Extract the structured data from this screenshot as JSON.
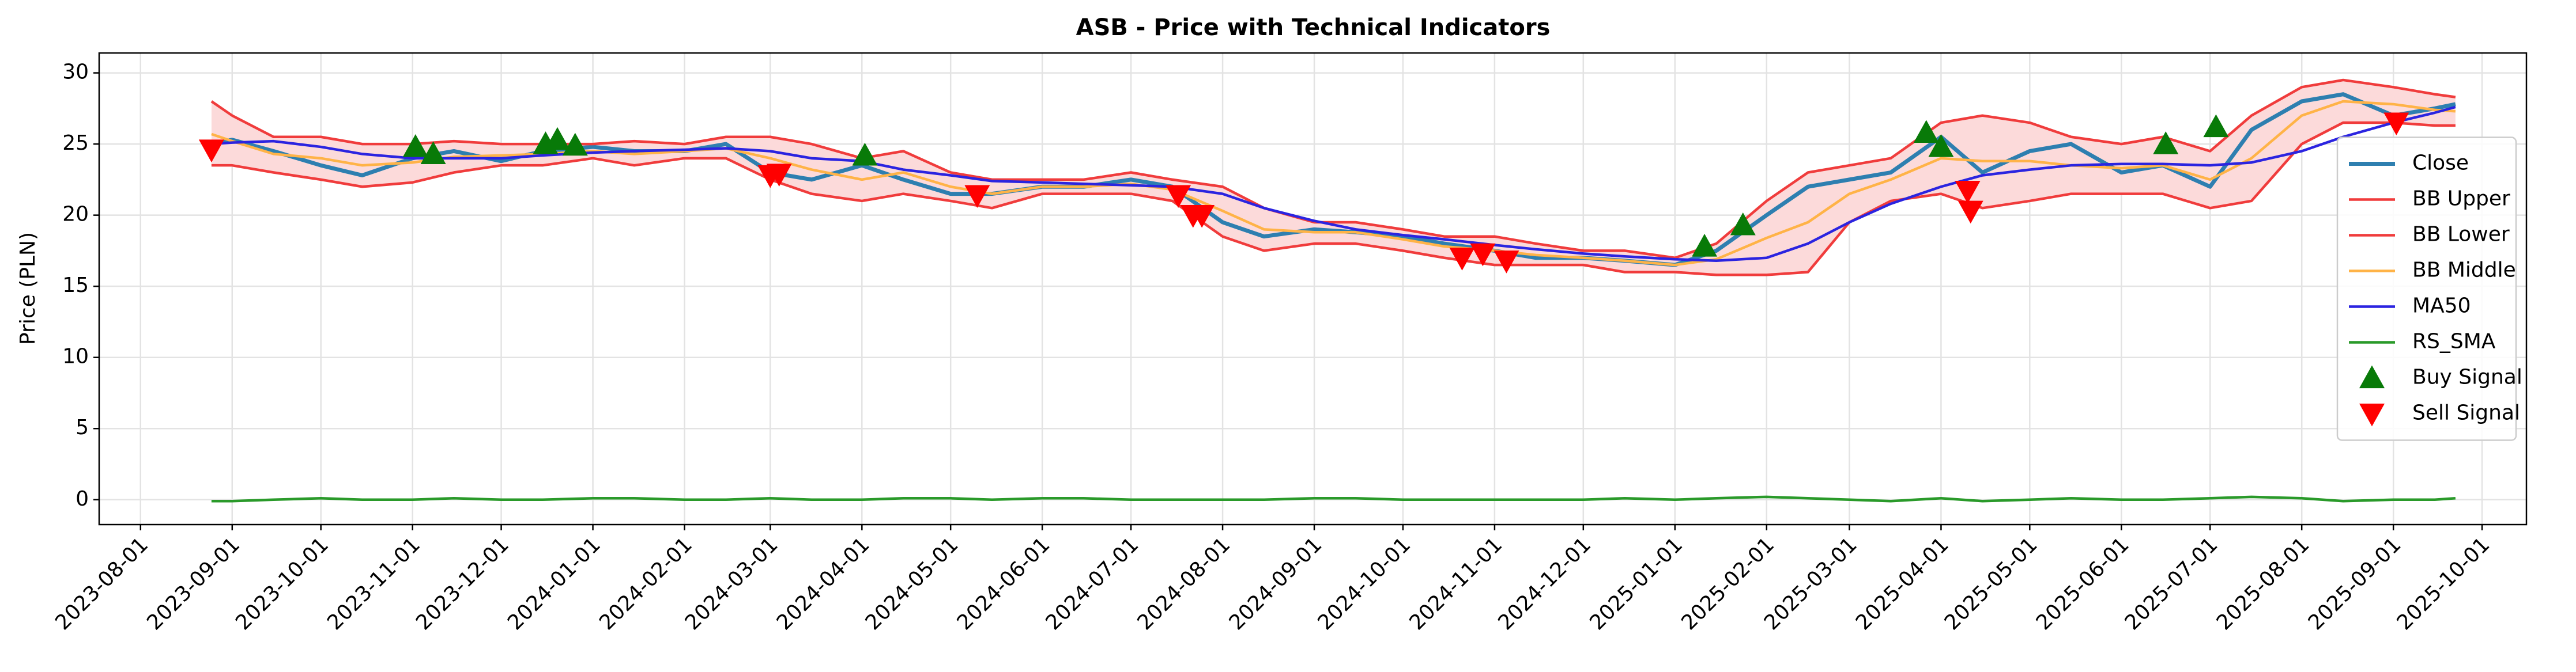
{
  "chart_data": {
    "type": "line",
    "title": "ASB - Price with Technical Indicators",
    "ylabel": "Price (PLN)",
    "x": [
      "2023-08-25",
      "2023-09-01",
      "2023-09-15",
      "2023-10-01",
      "2023-10-15",
      "2023-11-01",
      "2023-11-15",
      "2023-12-01",
      "2023-12-15",
      "2024-01-01",
      "2024-01-15",
      "2024-02-01",
      "2024-02-15",
      "2024-03-01",
      "2024-03-15",
      "2024-04-01",
      "2024-04-15",
      "2024-05-01",
      "2024-05-15",
      "2024-06-01",
      "2024-06-15",
      "2024-07-01",
      "2024-07-15",
      "2024-08-01",
      "2024-08-15",
      "2024-09-01",
      "2024-09-15",
      "2024-10-01",
      "2024-10-15",
      "2024-11-01",
      "2024-11-15",
      "2024-12-01",
      "2024-12-15",
      "2025-01-01",
      "2025-01-15",
      "2025-02-01",
      "2025-02-15",
      "2025-03-01",
      "2025-03-15",
      "2025-04-01",
      "2025-04-15",
      "2025-05-01",
      "2025-05-15",
      "2025-06-01",
      "2025-06-15",
      "2025-07-01",
      "2025-07-15",
      "2025-08-01",
      "2025-08-15",
      "2025-09-01",
      "2025-09-15",
      "2025-09-22"
    ],
    "series": [
      {
        "name": "Close",
        "color": "#2e7fb0",
        "width": 7,
        "values": [
          25.0,
          25.3,
          24.5,
          23.5,
          22.8,
          24.0,
          24.5,
          23.8,
          24.5,
          24.8,
          24.5,
          24.5,
          25.0,
          23.0,
          22.5,
          23.5,
          22.5,
          21.5,
          21.5,
          22.0,
          22.0,
          22.5,
          22.0,
          19.5,
          18.5,
          19.0,
          18.8,
          18.5,
          18.0,
          17.5,
          17.0,
          17.0,
          16.8,
          16.5,
          17.5,
          20.0,
          22.0,
          22.5,
          23.0,
          25.5,
          23.0,
          24.5,
          25.0,
          23.0,
          23.5,
          22.0,
          26.0,
          28.0,
          28.5,
          27.0,
          27.5,
          27.8
        ]
      },
      {
        "name": "BB Upper",
        "color": "#f03c3c",
        "width": 4.5,
        "values": [
          28.0,
          27.0,
          25.5,
          25.5,
          25.0,
          25.0,
          25.2,
          25.0,
          25.0,
          25.0,
          25.2,
          25.0,
          25.5,
          25.5,
          25.0,
          24.0,
          24.5,
          23.0,
          22.5,
          22.5,
          22.5,
          23.0,
          22.5,
          22.0,
          20.5,
          19.5,
          19.5,
          19.0,
          18.5,
          18.5,
          18.0,
          17.5,
          17.5,
          17.0,
          18.0,
          21.0,
          23.0,
          23.5,
          24.0,
          26.5,
          27.0,
          26.5,
          25.5,
          25.0,
          25.5,
          24.5,
          27.0,
          29.0,
          29.5,
          29.0,
          28.5,
          28.3
        ]
      },
      {
        "name": "BB Lower",
        "color": "#f03c3c",
        "width": 4.5,
        "values": [
          23.5,
          23.5,
          23.0,
          22.5,
          22.0,
          22.3,
          23.0,
          23.5,
          23.5,
          24.0,
          23.5,
          24.0,
          24.0,
          22.5,
          21.5,
          21.0,
          21.5,
          21.0,
          20.5,
          21.5,
          21.5,
          21.5,
          21.0,
          18.5,
          17.5,
          18.0,
          18.0,
          17.5,
          17.0,
          16.5,
          16.5,
          16.5,
          16.0,
          16.0,
          15.8,
          15.8,
          16.0,
          19.5,
          21.0,
          21.5,
          20.5,
          21.0,
          21.5,
          21.5,
          21.5,
          20.5,
          21.0,
          25.0,
          26.5,
          26.5,
          26.3,
          26.3
        ]
      },
      {
        "name": "BB Middle",
        "color": "#ffb347",
        "width": 4.5,
        "values": [
          25.7,
          25.2,
          24.3,
          24.0,
          23.5,
          23.7,
          24.1,
          24.2,
          24.3,
          24.5,
          24.3,
          24.5,
          24.7,
          24.0,
          23.2,
          22.5,
          23.0,
          22.0,
          21.5,
          22.0,
          22.0,
          22.2,
          21.8,
          20.3,
          19.0,
          18.8,
          18.8,
          18.3,
          17.8,
          17.5,
          17.2,
          17.0,
          16.8,
          16.5,
          16.9,
          18.4,
          19.5,
          21.5,
          22.5,
          24.0,
          23.8,
          23.8,
          23.5,
          23.3,
          23.5,
          22.5,
          24.0,
          27.0,
          28.0,
          27.8,
          27.4,
          27.3
        ]
      },
      {
        "name": "MA50",
        "color": "#2b24e0",
        "width": 4.5,
        "values": [
          25.0,
          25.1,
          25.2,
          24.8,
          24.3,
          24.0,
          24.0,
          24.0,
          24.2,
          24.4,
          24.5,
          24.6,
          24.7,
          24.5,
          24.0,
          23.8,
          23.2,
          22.8,
          22.4,
          22.3,
          22.2,
          22.1,
          22.0,
          21.5,
          20.5,
          19.6,
          19.0,
          18.6,
          18.3,
          17.9,
          17.6,
          17.3,
          17.1,
          16.9,
          16.8,
          17.0,
          18.0,
          19.5,
          20.8,
          22.0,
          22.8,
          23.2,
          23.5,
          23.6,
          23.6,
          23.5,
          23.7,
          24.5,
          25.5,
          26.5,
          27.2,
          27.6
        ]
      },
      {
        "name": "RS_SMA",
        "color": "#2a9a2a",
        "width": 4.5,
        "values": [
          -0.1,
          -0.1,
          0,
          0.1,
          0,
          0,
          0.1,
          0,
          0,
          0.1,
          0.1,
          0,
          0,
          0.1,
          0,
          0,
          0.1,
          0.1,
          0,
          0.1,
          0.1,
          0,
          0,
          0,
          0,
          0.1,
          0.1,
          0,
          0,
          0,
          0,
          0,
          0.1,
          0,
          0.1,
          0.2,
          0.1,
          0,
          -0.1,
          0.1,
          -0.1,
          0,
          0.1,
          0,
          0,
          0.1,
          0.2,
          0.1,
          -0.1,
          0,
          0,
          0.1
        ]
      }
    ],
    "fill_between": [
      1,
      2
    ],
    "fill_color": "#fcdada",
    "markers": [
      {
        "name": "Buy Signal",
        "color": "#087a08",
        "marker": "triangle-up",
        "x": [
          "2023-11-02",
          "2023-11-08",
          "2023-12-16",
          "2023-12-20",
          "2023-12-26",
          "2024-04-02",
          "2025-01-11",
          "2025-01-24",
          "2025-03-27",
          "2025-04-01",
          "2025-06-16",
          "2025-07-03"
        ],
        "values": [
          24.8,
          24.3,
          25.0,
          25.3,
          24.9,
          24.2,
          17.8,
          19.3,
          25.8,
          24.8,
          25.0,
          26.2
        ]
      },
      {
        "name": "Sell Signal",
        "color": "#ff0000",
        "marker": "triangle-down",
        "x": [
          "2023-08-25",
          "2024-03-01",
          "2024-03-04",
          "2024-05-10",
          "2024-07-17",
          "2024-07-22",
          "2024-07-25",
          "2024-10-21",
          "2024-10-28",
          "2024-11-05",
          "2025-04-10",
          "2025-04-11",
          "2025-09-02"
        ],
        "values": [
          24.6,
          22.8,
          22.9,
          21.4,
          21.4,
          20.0,
          20.0,
          17.0,
          17.3,
          16.8,
          21.7,
          20.3,
          26.5
        ]
      }
    ],
    "xlim": [
      "2023-07-18",
      "2025-10-16"
    ],
    "xticks": [
      "2023-08-01",
      "2023-09-01",
      "2023-10-01",
      "2023-11-01",
      "2023-12-01",
      "2024-01-01",
      "2024-02-01",
      "2024-03-01",
      "2024-04-01",
      "2024-05-01",
      "2024-06-01",
      "2024-07-01",
      "2024-08-01",
      "2024-09-01",
      "2024-10-01",
      "2024-11-01",
      "2024-12-01",
      "2025-01-01",
      "2025-02-01",
      "2025-03-01",
      "2025-04-01",
      "2025-05-01",
      "2025-06-01",
      "2025-07-01",
      "2025-08-01",
      "2025-09-01",
      "2025-10-01"
    ],
    "ylim": [
      -1.75,
      31.4
    ],
    "yticks": [
      0,
      5,
      10,
      15,
      20,
      25,
      30
    ],
    "grid": true,
    "legend": "center right"
  }
}
